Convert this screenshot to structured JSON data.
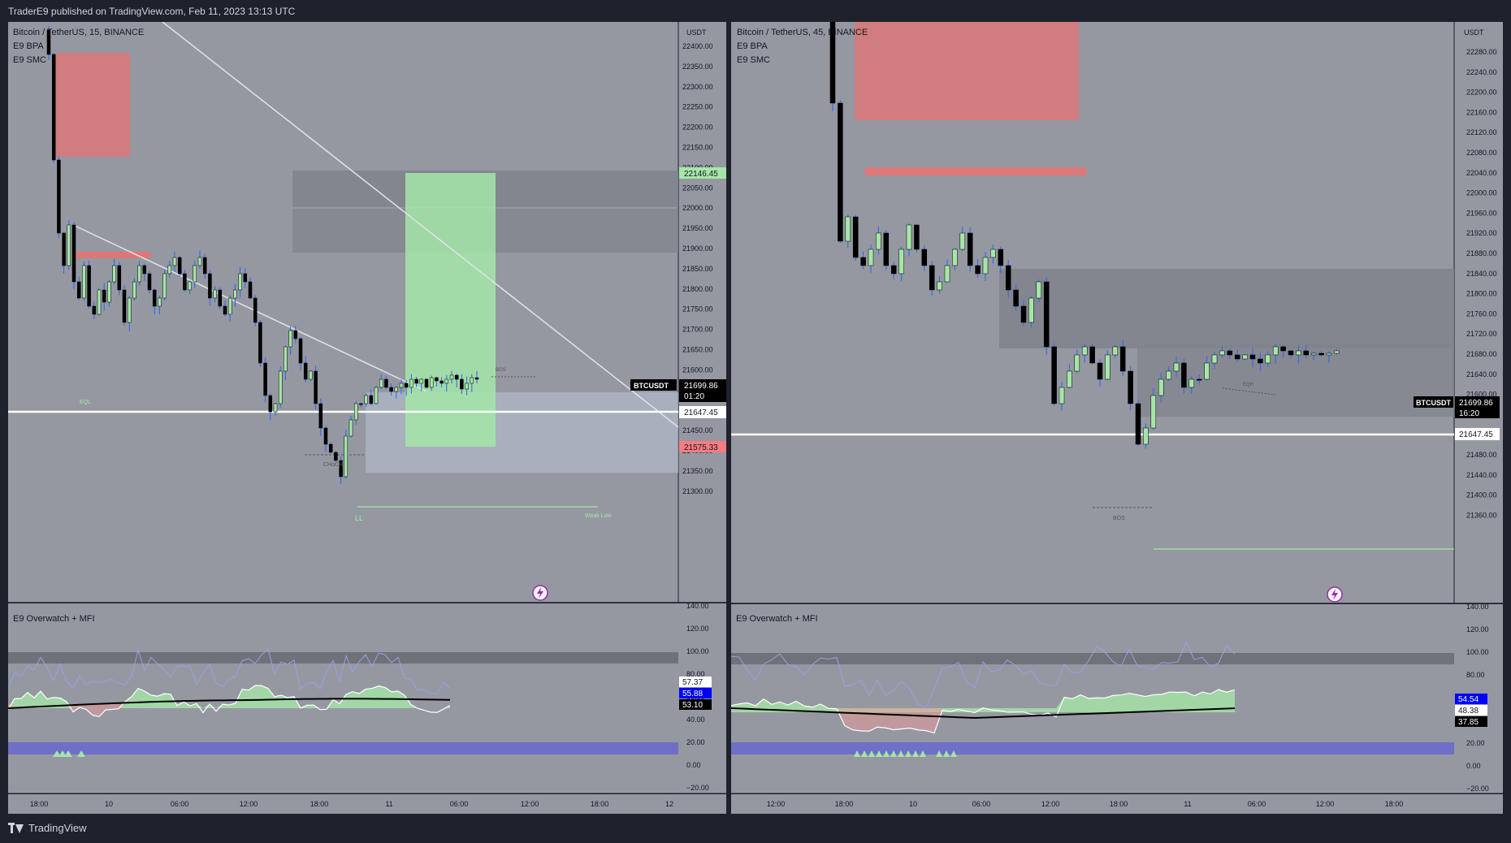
{
  "header": {
    "published": "TraderE9 published on TradingView.com, Feb 11, 2023 13:13 UTC"
  },
  "footer": {
    "brand": "TradingView"
  },
  "left": {
    "legend": {
      "symbol": "Bitcoin / TetherUS, 15, BINANCE",
      "ind1": "E9 BPA",
      "ind2": "E9 SMC"
    },
    "currency": "USDT",
    "yticks": [
      "22400.00",
      "22350.00",
      "22300.00",
      "22250.00",
      "22200.00",
      "22150.00",
      "22100.00",
      "22050.00",
      "22000.00",
      "21950.00",
      "21900.00",
      "21850.00",
      "21800.00",
      "21750.00",
      "21700.00",
      "21650.00",
      "21600.00",
      "21550.00",
      "21500.00",
      "21450.00",
      "21400.00",
      "21350.00",
      "21300.00"
    ],
    "labels": {
      "green": "22146.45",
      "ticker": "BTCUSDT",
      "price": "21699.86",
      "countdown": "01:20",
      "white": "21647.45",
      "red": "21575.33"
    },
    "annotations": {
      "eql": "EQL",
      "choch": "CHoCH",
      "ll": "LL",
      "weak_low": "Weak Low",
      "bos": "BOS"
    },
    "indicator": {
      "name": "E9 Overwatch + MFI",
      "yticks": [
        "140.00",
        "120.00",
        "100.00",
        "80.00",
        "60.00",
        "40.00",
        "20.00",
        "0.00",
        "−20.00"
      ],
      "v1": "57.37",
      "v2": "55.88",
      "v3": "53.10"
    },
    "xticks": [
      "18:00",
      "10",
      "06:00",
      "12:00",
      "18:00",
      "11",
      "06:00",
      "12:00",
      "18:00",
      "12"
    ]
  },
  "right": {
    "legend": {
      "symbol": "Bitcoin / TetherUS, 45, BINANCE",
      "ind1": "E9 BPA",
      "ind2": "E9 SMC"
    },
    "currency": "USDT",
    "yticks": [
      "22280.00",
      "22240.00",
      "22200.00",
      "22160.00",
      "22120.00",
      "22080.00",
      "22040.00",
      "22000.00",
      "21960.00",
      "21920.00",
      "21880.00",
      "21840.00",
      "21800.00",
      "21760.00",
      "21720.00",
      "21680.00",
      "21640.00",
      "21600.00",
      "21560.00",
      "21520.00",
      "21480.00",
      "21440.00",
      "21400.00",
      "21360.00"
    ],
    "labels": {
      "ticker": "BTCUSDT",
      "price": "21699.86",
      "countdown": "16:20",
      "white": "21647.45"
    },
    "annotations": {
      "bos": "BOS",
      "eqh": "EQH"
    },
    "indicator": {
      "name": "E9 Overwatch + MFI",
      "yticks": [
        "140.00",
        "120.00",
        "100.00",
        "80.00",
        "60.00",
        "40.00",
        "20.00",
        "0.00",
        "−20.00"
      ],
      "v1": "54.54",
      "v2": "48.38",
      "v3": "37.85"
    },
    "xticks": [
      "12:00",
      "18:00",
      "10",
      "06:00",
      "12:00",
      "18:00",
      "11",
      "06:00",
      "12:00",
      "18:00"
    ]
  },
  "colors": {
    "chart_bg": "#9598a1",
    "axis_bg": "#9598a1",
    "green_zone": "#a5e6a8",
    "red_zone": "#f08080",
    "bull": "#a5e6a8",
    "bear": "#000000",
    "wick": "#2962ff",
    "price_tag": "#000000",
    "green_tag": "#a5e6a8",
    "red_tag": "#f77c80"
  }
}
